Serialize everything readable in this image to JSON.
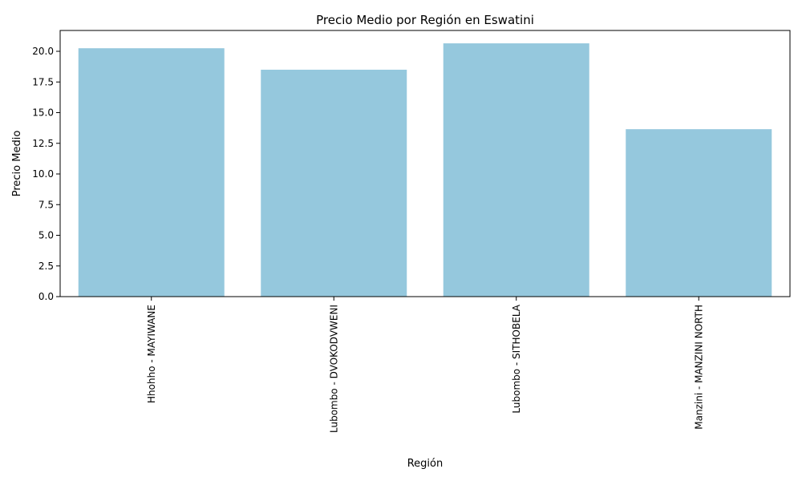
{
  "chart_data": {
    "type": "bar",
    "title": "Precio Medio por Región en Eswatini",
    "xlabel": "Región",
    "ylabel": "Precio Medio",
    "categories": [
      "Hhohho - MAYIWANE",
      "Lubombo - DVOKODVWENI",
      "Lubombo - SITHOBELA",
      "Manzini - MANZINI NORTH"
    ],
    "values": [
      20.25,
      18.5,
      20.65,
      13.65
    ],
    "ylim": [
      0,
      21.7
    ],
    "yticks": [
      0.0,
      2.5,
      5.0,
      7.5,
      10.0,
      12.5,
      15.0,
      17.5,
      20.0
    ],
    "ytick_labels": [
      "0.0",
      "2.5",
      "5.0",
      "7.5",
      "10.0",
      "12.5",
      "15.0",
      "17.5",
      "20.0"
    ],
    "bar_color": "#95c8dd",
    "grid": false,
    "legend": "none"
  }
}
